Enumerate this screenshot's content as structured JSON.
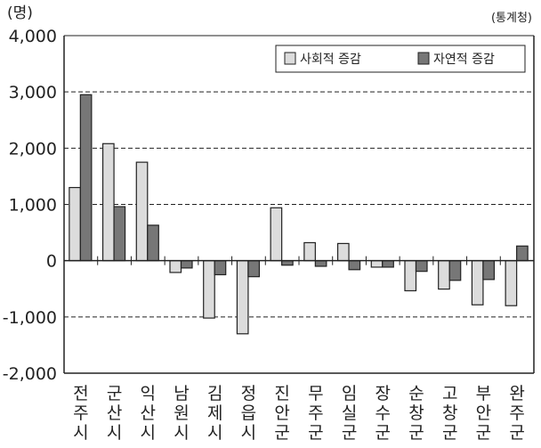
{
  "chart_data": {
    "type": "bar",
    "unit_label": "(명)",
    "source": "(통계청)",
    "categories": [
      "전주시",
      "군산시",
      "익산시",
      "남원시",
      "김제시",
      "정읍시",
      "진안군",
      "무주군",
      "임실군",
      "장수군",
      "순창군",
      "고창군",
      "부안군",
      "완주군"
    ],
    "series": [
      {
        "name": "사회적 증감",
        "color": "#dcdcdc",
        "values": [
          1300,
          2080,
          1750,
          -210,
          -1020,
          -1300,
          940,
          320,
          305,
          -115,
          -535,
          -505,
          -785,
          -800
        ]
      },
      {
        "name": "자연적 증감",
        "color": "#777777",
        "values": [
          2950,
          960,
          630,
          -130,
          -250,
          -285,
          -80,
          -100,
          -160,
          -115,
          -190,
          -350,
          -335,
          260
        ]
      }
    ],
    "ylim": [
      -2000,
      4000
    ],
    "yticks": [
      -2000,
      -1000,
      0,
      1000,
      2000,
      3000,
      4000
    ],
    "ytick_labels": [
      "-2,000",
      "-1,000",
      "0",
      "1,000",
      "2,000",
      "3,000",
      "4,000"
    ],
    "grid": "dashed horizontal",
    "legend_position": "top-right"
  }
}
